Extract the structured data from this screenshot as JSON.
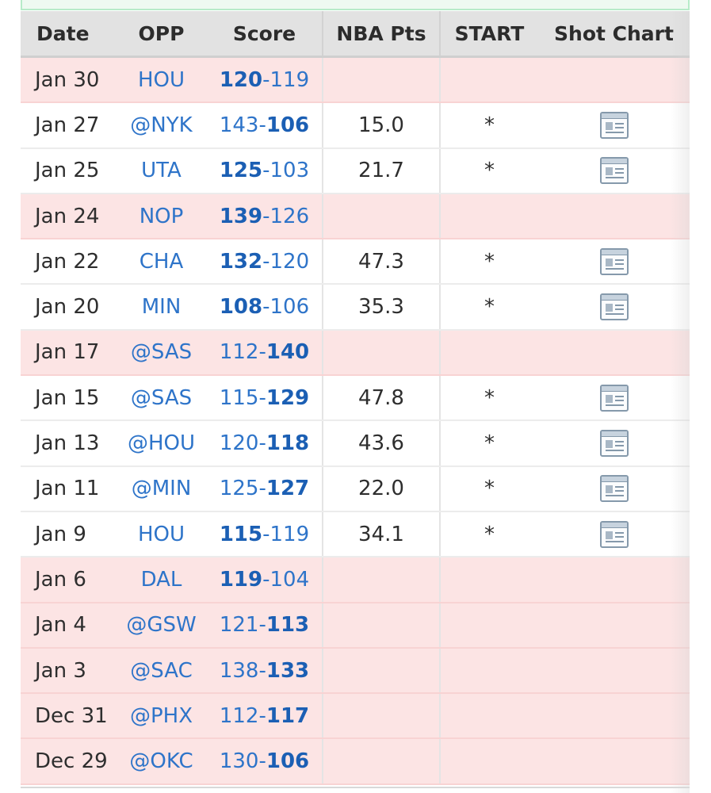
{
  "columns": {
    "date": "Date",
    "opp": "OPP",
    "score": "Score",
    "nba_pts": "NBA Pts",
    "start": "START",
    "shot_chart": "Shot Chart"
  },
  "games": [
    {
      "date": "Jan 30",
      "opp": "HOU",
      "score_a": "120",
      "score_b": "119",
      "win_first": true,
      "nba_pts": "",
      "start": "",
      "shot_chart": false
    },
    {
      "date": "Jan 27",
      "opp": "@NYK",
      "score_a": "143",
      "score_b": "106",
      "win_first": false,
      "nba_pts": "15.0",
      "start": "*",
      "shot_chart": true
    },
    {
      "date": "Jan 25",
      "opp": "UTA",
      "score_a": "125",
      "score_b": "103",
      "win_first": true,
      "nba_pts": "21.7",
      "start": "*",
      "shot_chart": true
    },
    {
      "date": "Jan 24",
      "opp": "NOP",
      "score_a": "139",
      "score_b": "126",
      "win_first": true,
      "nba_pts": "",
      "start": "",
      "shot_chart": false
    },
    {
      "date": "Jan 22",
      "opp": "CHA",
      "score_a": "132",
      "score_b": "120",
      "win_first": true,
      "nba_pts": "47.3",
      "start": "*",
      "shot_chart": true
    },
    {
      "date": "Jan 20",
      "opp": "MIN",
      "score_a": "108",
      "score_b": "106",
      "win_first": true,
      "nba_pts": "35.3",
      "start": "*",
      "shot_chart": true
    },
    {
      "date": "Jan 17",
      "opp": "@SAS",
      "score_a": "112",
      "score_b": "140",
      "win_first": false,
      "nba_pts": "",
      "start": "",
      "shot_chart": false
    },
    {
      "date": "Jan 15",
      "opp": "@SAS",
      "score_a": "115",
      "score_b": "129",
      "win_first": false,
      "nba_pts": "47.8",
      "start": "*",
      "shot_chart": true
    },
    {
      "date": "Jan 13",
      "opp": "@HOU",
      "score_a": "120",
      "score_b": "118",
      "win_first": false,
      "nba_pts": "43.6",
      "start": "*",
      "shot_chart": true
    },
    {
      "date": "Jan 11",
      "opp": "@MIN",
      "score_a": "125",
      "score_b": "127",
      "win_first": false,
      "nba_pts": "22.0",
      "start": "*",
      "shot_chart": true
    },
    {
      "date": "Jan 9",
      "opp": "HOU",
      "score_a": "115",
      "score_b": "119",
      "win_first": true,
      "nba_pts": "34.1",
      "start": "*",
      "shot_chart": true
    },
    {
      "date": "Jan 6",
      "opp": "DAL",
      "score_a": "119",
      "score_b": "104",
      "win_first": true,
      "nba_pts": "",
      "start": "",
      "shot_chart": false
    },
    {
      "date": "Jan 4",
      "opp": "@GSW",
      "score_a": "121",
      "score_b": "113",
      "win_first": false,
      "nba_pts": "",
      "start": "",
      "shot_chart": false
    },
    {
      "date": "Jan 3",
      "opp": "@SAC",
      "score_a": "138",
      "score_b": "133",
      "win_first": false,
      "nba_pts": "",
      "start": "",
      "shot_chart": false
    },
    {
      "date": "Dec 31",
      "opp": "@PHX",
      "score_a": "112",
      "score_b": "117",
      "win_first": false,
      "nba_pts": "",
      "start": "",
      "shot_chart": false
    },
    {
      "date": "Dec 29",
      "opp": "@OKC",
      "score_a": "130",
      "score_b": "106",
      "win_first": false,
      "nba_pts": "",
      "start": "",
      "shot_chart": false
    }
  ],
  "colors": {
    "link": "#2e74c9",
    "inactive_row": "#fce4e4",
    "header_bg": "#e2e2e2"
  },
  "icons": {
    "shot_chart": "shot-chart-icon"
  }
}
